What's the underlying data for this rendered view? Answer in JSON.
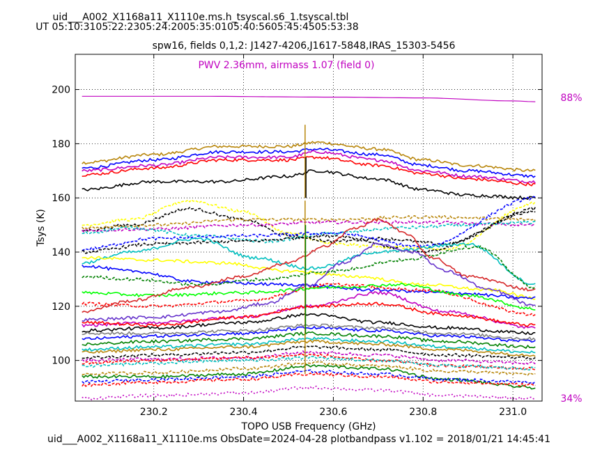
{
  "header": {
    "file_title": "uid___A002_X1168a11_X1110e.ms.h_tsyscal.s6_1.tsyscal.tbl",
    "ut_times": "UT 05:10:3105:22:2305:24:2005:35:0105:40:5605:45:4505:53:38"
  },
  "chart_data": {
    "type": "line",
    "title": "spw16,  fields 0,1,2: J1427-4206,J1617-5848,IRAS_15303-5456",
    "pwv_annotation": "PWV 2.36mm, airmass 1.07 (field 0)",
    "xlabel": "TOPO USB Frequency (GHz)",
    "ylabel": "Tsys (K)",
    "xlim": [
      230.025,
      231.065
    ],
    "ylim": [
      85,
      213
    ],
    "xticks": [
      230.2,
      230.4,
      230.6,
      230.8,
      231.0
    ],
    "xtick_labels": [
      "230.2",
      "230.4",
      "230.6",
      "230.8",
      "231.0"
    ],
    "yticks": [
      100,
      120,
      140,
      160,
      180,
      200
    ],
    "ytick_labels": [
      "100",
      "120",
      "140",
      "160",
      "180",
      "200"
    ],
    "grid": true,
    "atm_scale": {
      "top_label": "88%",
      "bottom_label": "34%",
      "color": "#c000c0"
    },
    "series": [
      {
        "style": "atm",
        "color": "#c000c0",
        "x": [
          230.04,
          230.3,
          230.6,
          230.8,
          231.0,
          231.05
        ],
        "y": [
          197.5,
          197.5,
          197.2,
          196.9,
          195.8,
          195.5
        ]
      },
      {
        "color": "#b8860b",
        "x": [
          230.04,
          230.2,
          230.35,
          230.5,
          230.56,
          230.7,
          230.8,
          230.9,
          231.05
        ],
        "y": [
          173,
          176,
          179,
          179,
          180.5,
          178,
          174,
          172,
          170
        ]
      },
      {
        "color": "#0000ff",
        "x": [
          230.04,
          230.2,
          230.35,
          230.5,
          230.56,
          230.7,
          230.8,
          230.9,
          231.05
        ],
        "y": [
          171,
          174,
          177,
          177,
          178,
          176,
          172,
          170,
          168
        ]
      },
      {
        "color": "#c000c0",
        "x": [
          230.04,
          230.2,
          230.35,
          230.5,
          230.56,
          230.7,
          230.8,
          230.9,
          231.05
        ],
        "y": [
          170,
          172,
          175,
          175,
          177,
          174,
          170,
          168,
          166
        ]
      },
      {
        "color": "#ff0000",
        "x": [
          230.04,
          230.2,
          230.35,
          230.5,
          230.56,
          230.7,
          230.8,
          230.9,
          231.05
        ],
        "y": [
          168.5,
          171,
          174,
          174,
          175,
          172,
          169,
          167,
          165
        ]
      },
      {
        "color": "#000000",
        "x": [
          230.04,
          230.2,
          230.35,
          230.5,
          230.56,
          230.7,
          230.8,
          230.9,
          231.05
        ],
        "y": [
          163,
          166,
          166,
          168,
          170,
          167,
          163,
          161,
          160
        ]
      },
      {
        "color": "#ffff00",
        "dashed": true,
        "x": [
          230.04,
          230.15,
          230.28,
          230.4,
          230.5,
          230.6,
          230.7,
          230.85,
          231.05
        ],
        "y": [
          150,
          152,
          159,
          155,
          147,
          143,
          142,
          141,
          158
        ]
      },
      {
        "color": "#000000",
        "dashed": true,
        "x": [
          230.04,
          230.15,
          230.28,
          230.4,
          230.5,
          230.6,
          230.7,
          230.85,
          231.05
        ],
        "y": [
          148,
          150,
          156,
          152,
          146,
          144,
          145,
          143,
          156
        ]
      },
      {
        "color": "#b8860b",
        "dashed": true,
        "x": [
          230.04,
          230.2,
          230.4,
          230.6,
          230.8,
          231.05
        ],
        "y": [
          149,
          150,
          152,
          152,
          153,
          152
        ]
      },
      {
        "color": "#c000c0",
        "dashed": true,
        "x": [
          230.04,
          230.2,
          230.4,
          230.6,
          230.8,
          231.05
        ],
        "y": [
          148,
          148.5,
          150,
          151,
          151,
          150
        ]
      },
      {
        "color": "#00bfbf",
        "dashed": true,
        "x": [
          230.04,
          230.15,
          230.3,
          230.45,
          230.6,
          230.75,
          230.9,
          231.05
        ],
        "y": [
          147,
          149,
          146,
          144,
          147,
          149,
          150,
          151
        ]
      },
      {
        "color": "#0000ff",
        "dashed": true,
        "x": [
          230.04,
          230.2,
          230.4,
          230.6,
          230.8,
          231.05
        ],
        "y": [
          141,
          145,
          146,
          147,
          142,
          160
        ]
      },
      {
        "color": "#000000",
        "dashed": true,
        "x": [
          230.04,
          230.2,
          230.4,
          230.6,
          230.8,
          231.05
        ],
        "y": [
          140,
          143,
          144,
          146,
          140,
          155
        ]
      },
      {
        "color": "#00bfbf",
        "x": [
          230.04,
          230.15,
          230.3,
          230.42,
          230.55,
          230.7,
          230.9,
          231.05
        ],
        "y": [
          136,
          140,
          145,
          138,
          134,
          140,
          143,
          128
        ]
      },
      {
        "color": "#ffff00",
        "x": [
          230.04,
          230.2,
          230.35,
          230.5,
          230.65,
          230.8,
          230.95,
          231.05
        ],
        "y": [
          138,
          137,
          136,
          133,
          131,
          128,
          126,
          123
        ]
      },
      {
        "color": "#0000ff",
        "x": [
          230.04,
          230.15,
          230.3,
          230.5,
          230.7,
          230.85,
          231.05
        ],
        "y": [
          135,
          133,
          129,
          128,
          126,
          125,
          123
        ]
      },
      {
        "color": "#008000",
        "dashed": true,
        "x": [
          230.04,
          230.15,
          230.3,
          230.45,
          230.6,
          230.75,
          230.92,
          231.05
        ],
        "y": [
          131,
          130,
          128,
          130,
          133,
          137,
          142,
          127
        ]
      },
      {
        "color": "#ff0000",
        "dashed": true,
        "x": [
          230.04,
          230.2,
          230.4,
          230.6,
          230.8,
          231.05
        ],
        "y": [
          121,
          120,
          122,
          128,
          126,
          117
        ]
      },
      {
        "color": "#00ff00",
        "x": [
          230.04,
          230.2,
          230.4,
          230.6,
          230.75,
          230.9,
          231.05
        ],
        "y": [
          125,
          124,
          125,
          127,
          128,
          124,
          119
        ]
      },
      {
        "color": "#d62728",
        "x": [
          230.04,
          230.15,
          230.28,
          230.4,
          230.5,
          230.58,
          230.65,
          230.7,
          230.76,
          230.82,
          230.9,
          231.05
        ],
        "y": [
          118,
          122,
          127,
          131,
          136,
          142,
          149,
          152,
          147,
          138,
          131,
          126
        ]
      },
      {
        "color": "#6633cc",
        "x": [
          230.04,
          230.2,
          230.35,
          230.45,
          230.55,
          230.62,
          230.7,
          230.78,
          230.85,
          230.95,
          231.05
        ],
        "y": [
          115,
          116,
          118,
          121,
          128,
          136,
          143,
          140,
          133,
          126,
          120
        ]
      },
      {
        "color": "#c000c0",
        "x": [
          230.04,
          230.2,
          230.4,
          230.55,
          230.7,
          230.85,
          231.05
        ],
        "y": [
          113,
          114,
          116,
          120,
          125,
          118,
          112
        ]
      },
      {
        "color": "#000000",
        "x": [
          230.04,
          230.2,
          230.4,
          230.55,
          230.7,
          230.85,
          231.05
        ],
        "y": [
          111,
          112,
          114,
          117,
          114,
          112,
          110
        ]
      },
      {
        "color": "#ff0000",
        "x": [
          230.04,
          230.2,
          230.4,
          230.55,
          230.7,
          230.85,
          231.05
        ],
        "y": [
          114,
          113,
          116,
          120,
          121,
          117,
          113
        ]
      },
      {
        "color": "#0000ff",
        "x": [
          230.04,
          230.2,
          230.4,
          230.55,
          230.7,
          230.85,
          231.05
        ],
        "y": [
          108,
          109,
          110,
          112,
          111,
          109,
          107
        ]
      },
      {
        "color": "#008000",
        "x": [
          230.04,
          230.2,
          230.4,
          230.55,
          230.7,
          230.85,
          231.05
        ],
        "y": [
          106,
          107,
          108,
          110,
          109,
          107,
          105
        ]
      },
      {
        "color": "#00bfbf",
        "x": [
          230.04,
          230.2,
          230.4,
          230.55,
          230.7,
          230.85,
          231.05
        ],
        "y": [
          104,
          105,
          106,
          108,
          107,
          105,
          103
        ]
      },
      {
        "color": "#b8860b",
        "x": [
          230.04,
          230.2,
          230.4,
          230.55,
          230.7,
          230.85,
          231.05
        ],
        "y": [
          103,
          104,
          105,
          107,
          106,
          104,
          102
        ]
      },
      {
        "color": "#808080",
        "x": [
          230.04,
          230.2,
          230.4,
          230.55,
          230.7,
          230.85,
          231.05
        ],
        "y": [
          110,
          110,
          111,
          113,
          112,
          110,
          108
        ]
      },
      {
        "color": "#000000",
        "dashed": true,
        "x": [
          230.04,
          230.2,
          230.4,
          230.55,
          230.7,
          230.85,
          231.05
        ],
        "y": [
          101,
          102,
          103,
          105,
          104,
          102,
          101
        ]
      },
      {
        "color": "#c000c0",
        "dashed": true,
        "x": [
          230.04,
          230.2,
          230.4,
          230.55,
          230.7,
          230.85,
          231.05
        ],
        "y": [
          100,
          100.5,
          101,
          103,
          102,
          100,
          99
        ]
      },
      {
        "color": "#ff0000",
        "dashed": true,
        "x": [
          230.04,
          230.2,
          230.4,
          230.55,
          230.7,
          230.85,
          231.05
        ],
        "y": [
          99,
          100,
          101,
          102,
          100,
          98,
          97
        ]
      },
      {
        "color": "#00bfbf",
        "dashed": true,
        "x": [
          230.04,
          230.2,
          230.4,
          230.55,
          230.7,
          230.85,
          231.05
        ],
        "y": [
          98,
          99,
          100,
          101,
          100,
          98,
          97
        ]
      },
      {
        "color": "#b8860b",
        "dashed": true,
        "x": [
          230.04,
          230.2,
          230.4,
          230.55,
          230.7,
          230.85,
          231.05
        ],
        "y": [
          95,
          95.5,
          97,
          99,
          98,
          96,
          95
        ]
      },
      {
        "color": "#008000",
        "x": [
          230.04,
          230.2,
          230.4,
          230.55,
          230.7,
          230.85,
          231.05
        ],
        "y": [
          94,
          94,
          95,
          98,
          97,
          93,
          90
        ]
      },
      {
        "color": "#0000ff",
        "dashed": true,
        "x": [
          230.04,
          230.2,
          230.4,
          230.55,
          230.7,
          230.85,
          231.05
        ],
        "y": [
          92,
          93,
          94,
          96,
          95,
          93,
          92
        ]
      },
      {
        "color": "#ff0000",
        "dashed": true,
        "x": [
          230.04,
          230.2,
          230.4,
          230.55,
          230.7,
          230.85,
          231.05
        ],
        "y": [
          91,
          92,
          93,
          95,
          94,
          92,
          91
        ]
      },
      {
        "color": "#c000c0",
        "dotted": true,
        "x": [
          230.04,
          230.2,
          230.4,
          230.55,
          230.7,
          230.85,
          231.05
        ],
        "y": [
          86,
          87,
          88,
          90,
          89,
          87,
          86
        ]
      }
    ],
    "spikes": [
      {
        "x": 230.537,
        "y0": 160,
        "y1": 187,
        "color": "#b8860b"
      },
      {
        "x": 230.537,
        "y0": 95,
        "y1": 159,
        "color": "#b8860b"
      },
      {
        "x": 230.538,
        "y0": 110,
        "y1": 150,
        "color": "#008000"
      },
      {
        "x": 230.539,
        "y0": 160,
        "y1": 175,
        "color": "#000000"
      }
    ]
  },
  "footer": {
    "caption": "uid___A002_X1168a11_X1110e.ms  ObsDate=2024-04-28   plotbandpass v1.102 = 2018/01/21 14:45:41"
  }
}
